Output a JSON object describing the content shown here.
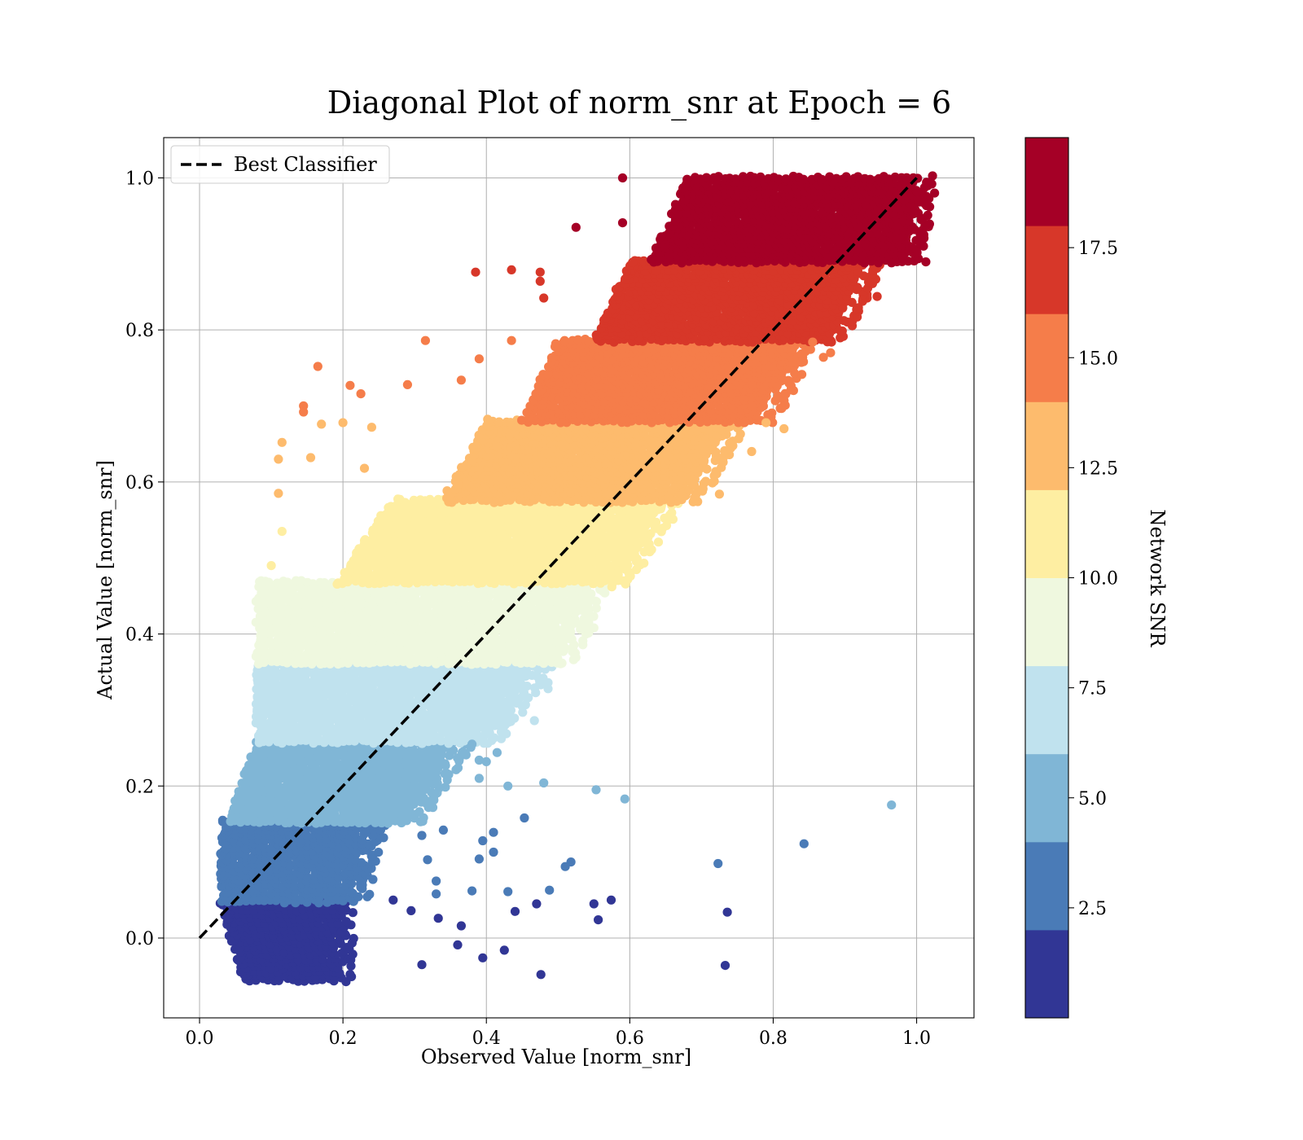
{
  "chart_data": {
    "type": "scatter",
    "title": "Diagonal Plot of norm_snr at Epoch = 6",
    "xlabel": "Observed Value [norm_snr]",
    "ylabel": "Actual Value [norm_snr]",
    "xlim": [
      -0.05,
      1.08
    ],
    "ylim": [
      -0.105,
      1.053
    ],
    "xticks": [
      0.0,
      0.2,
      0.4,
      0.6,
      0.8,
      1.0
    ],
    "xtick_labels": [
      "0.0",
      "0.2",
      "0.4",
      "0.6",
      "0.8",
      "1.0"
    ],
    "yticks": [
      0.0,
      0.2,
      0.4,
      0.6,
      0.8,
      1.0
    ],
    "ytick_labels": [
      "0.0",
      "0.2",
      "0.4",
      "0.6",
      "0.8",
      "1.0"
    ],
    "grid": true,
    "legend": {
      "placement": "upper-left",
      "entries": [
        "Best Classifier"
      ]
    },
    "reference_line": {
      "name": "Best Classifier",
      "style": "dashed",
      "color": "#000000",
      "x": [
        0.0,
        1.0
      ],
      "y": [
        0.0,
        1.0
      ]
    },
    "colorbar": {
      "label": "Network SNR",
      "range": [
        0,
        20
      ],
      "ticks": [
        2.5,
        5.0,
        7.5,
        10.0,
        12.5,
        15.0,
        17.5
      ],
      "tick_labels": [
        "2.5",
        "5.0",
        "7.5",
        "10.0",
        "12.5",
        "15.0",
        "17.5"
      ],
      "bin_edges": [
        0,
        2,
        4,
        6,
        8,
        10,
        12,
        14,
        16,
        18,
        20
      ],
      "colors": [
        "#313695",
        "#4a7bb7",
        "#80b6d6",
        "#c0e2ee",
        "#eff8df",
        "#feeea2",
        "#fdbb6d",
        "#f57d4a",
        "#d73729",
        "#a50026"
      ]
    },
    "bands": [
      {
        "snr_bin": "0-2",
        "y_min": -0.055,
        "y_max": 0.048,
        "x_min_at_bottom": 0.07,
        "x_max_at_bottom": 0.19,
        "x_min_at_top": 0.04,
        "x_max_at_top": 0.19
      },
      {
        "snr_bin": "2-4",
        "y_min": 0.048,
        "y_max": 0.153,
        "x_min_at_bottom": 0.04,
        "x_max_at_bottom": 0.21,
        "x_min_at_top": 0.04,
        "x_max_at_top": 0.24
      },
      {
        "snr_bin": "4-6",
        "y_min": 0.153,
        "y_max": 0.258,
        "x_min_at_bottom": 0.05,
        "x_max_at_bottom": 0.29,
        "x_min_at_top": 0.09,
        "x_max_at_top": 0.36
      },
      {
        "snr_bin": "6-8",
        "y_min": 0.258,
        "y_max": 0.362,
        "x_min_at_bottom": 0.09,
        "x_max_at_bottom": 0.4,
        "x_min_at_top": 0.09,
        "x_max_at_top": 0.47
      },
      {
        "snr_bin": "8-10",
        "y_min": 0.362,
        "y_max": 0.468,
        "x_min_at_bottom": 0.09,
        "x_max_at_bottom": 0.5,
        "x_min_at_top": 0.09,
        "x_max_at_top": 0.55
      },
      {
        "snr_bin": "10-12",
        "y_min": 0.468,
        "y_max": 0.575,
        "x_min_at_bottom": 0.2,
        "x_max_at_bottom": 0.58,
        "x_min_at_top": 0.28,
        "x_max_at_top": 0.65
      },
      {
        "snr_bin": "12-14",
        "y_min": 0.575,
        "y_max": 0.68,
        "x_min_at_bottom": 0.35,
        "x_max_at_bottom": 0.68,
        "x_min_at_top": 0.41,
        "x_max_at_top": 0.74
      },
      {
        "snr_bin": "14-16",
        "y_min": 0.68,
        "y_max": 0.786,
        "x_min_at_bottom": 0.46,
        "x_max_at_bottom": 0.78,
        "x_min_at_top": 0.51,
        "x_max_at_top": 0.84
      },
      {
        "snr_bin": "16-18",
        "y_min": 0.786,
        "y_max": 0.89,
        "x_min_at_bottom": 0.56,
        "x_max_at_bottom": 0.88,
        "x_min_at_top": 0.61,
        "x_max_at_top": 0.93
      },
      {
        "snr_bin": "18-20",
        "y_min": 0.89,
        "y_max": 1.0,
        "x_min_at_bottom": 0.64,
        "x_max_at_bottom": 0.99,
        "x_min_at_top": 0.69,
        "x_max_at_top": 1.0
      }
    ],
    "outliers": [
      {
        "x": 0.31,
        "y": -0.035,
        "bin": 0
      },
      {
        "x": 0.36,
        "y": -0.009,
        "bin": 0
      },
      {
        "x": 0.395,
        "y": -0.026,
        "bin": 0
      },
      {
        "x": 0.425,
        "y": -0.016,
        "bin": 0
      },
      {
        "x": 0.476,
        "y": -0.048,
        "bin": 0
      },
      {
        "x": 0.733,
        "y": -0.036,
        "bin": 0
      },
      {
        "x": 0.736,
        "y": 0.034,
        "bin": 0
      },
      {
        "x": 0.574,
        "y": 0.05,
        "bin": 0
      },
      {
        "x": 0.556,
        "y": 0.024,
        "bin": 0
      },
      {
        "x": 0.55,
        "y": 0.045,
        "bin": 0
      },
      {
        "x": 0.47,
        "y": 0.045,
        "bin": 0
      },
      {
        "x": 0.44,
        "y": 0.035,
        "bin": 0
      },
      {
        "x": 0.365,
        "y": 0.016,
        "bin": 0
      },
      {
        "x": 0.333,
        "y": 0.026,
        "bin": 0
      },
      {
        "x": 0.295,
        "y": 0.036,
        "bin": 0
      },
      {
        "x": 0.27,
        "y": 0.05,
        "bin": 0
      },
      {
        "x": 0.843,
        "y": 0.124,
        "bin": 1
      },
      {
        "x": 0.723,
        "y": 0.098,
        "bin": 1
      },
      {
        "x": 0.518,
        "y": 0.1,
        "bin": 1
      },
      {
        "x": 0.51,
        "y": 0.094,
        "bin": 1
      },
      {
        "x": 0.488,
        "y": 0.063,
        "bin": 1
      },
      {
        "x": 0.43,
        "y": 0.061,
        "bin": 1
      },
      {
        "x": 0.41,
        "y": 0.113,
        "bin": 1
      },
      {
        "x": 0.41,
        "y": 0.139,
        "bin": 1
      },
      {
        "x": 0.395,
        "y": 0.128,
        "bin": 1
      },
      {
        "x": 0.39,
        "y": 0.104,
        "bin": 1
      },
      {
        "x": 0.38,
        "y": 0.062,
        "bin": 1
      },
      {
        "x": 0.34,
        "y": 0.142,
        "bin": 1
      },
      {
        "x": 0.318,
        "y": 0.103,
        "bin": 1
      },
      {
        "x": 0.33,
        "y": 0.075,
        "bin": 1
      },
      {
        "x": 0.31,
        "y": 0.135,
        "bin": 1
      },
      {
        "x": 0.453,
        "y": 0.158,
        "bin": 1
      },
      {
        "x": 0.33,
        "y": 0.058,
        "bin": 1
      },
      {
        "x": 0.965,
        "y": 0.175,
        "bin": 2
      },
      {
        "x": 0.593,
        "y": 0.183,
        "bin": 2
      },
      {
        "x": 0.553,
        "y": 0.195,
        "bin": 2
      },
      {
        "x": 0.48,
        "y": 0.204,
        "bin": 2
      },
      {
        "x": 0.43,
        "y": 0.2,
        "bin": 2
      },
      {
        "x": 0.415,
        "y": 0.244,
        "bin": 2
      },
      {
        "x": 0.39,
        "y": 0.21,
        "bin": 2
      },
      {
        "x": 0.39,
        "y": 0.234,
        "bin": 2
      },
      {
        "x": 0.4,
        "y": 0.232,
        "bin": 2
      },
      {
        "x": 0.38,
        "y": 0.255,
        "bin": 2
      },
      {
        "x": 0.486,
        "y": 0.336,
        "bin": 3
      },
      {
        "x": 0.486,
        "y": 0.328,
        "bin": 3
      },
      {
        "x": 0.467,
        "y": 0.286,
        "bin": 3
      },
      {
        "x": 0.45,
        "y": 0.305,
        "bin": 3
      },
      {
        "x": 0.43,
        "y": 0.295,
        "bin": 3
      },
      {
        "x": 0.41,
        "y": 0.285,
        "bin": 3
      },
      {
        "x": 0.55,
        "y": 0.408,
        "bin": 4
      },
      {
        "x": 0.52,
        "y": 0.382,
        "bin": 4
      },
      {
        "x": 0.59,
        "y": 0.47,
        "bin": 5
      },
      {
        "x": 0.575,
        "y": 0.462,
        "bin": 5
      },
      {
        "x": 0.62,
        "y": 0.508,
        "bin": 5
      },
      {
        "x": 0.1,
        "y": 0.49,
        "bin": 5
      },
      {
        "x": 0.115,
        "y": 0.535,
        "bin": 5
      },
      {
        "x": 0.725,
        "y": 0.584,
        "bin": 6
      },
      {
        "x": 0.69,
        "y": 0.596,
        "bin": 6
      },
      {
        "x": 0.11,
        "y": 0.585,
        "bin": 6
      },
      {
        "x": 0.11,
        "y": 0.63,
        "bin": 6
      },
      {
        "x": 0.115,
        "y": 0.652,
        "bin": 6
      },
      {
        "x": 0.155,
        "y": 0.632,
        "bin": 6
      },
      {
        "x": 0.17,
        "y": 0.676,
        "bin": 6
      },
      {
        "x": 0.2,
        "y": 0.678,
        "bin": 6
      },
      {
        "x": 0.24,
        "y": 0.672,
        "bin": 6
      },
      {
        "x": 0.23,
        "y": 0.618,
        "bin": 6
      },
      {
        "x": 0.815,
        "y": 0.67,
        "bin": 6
      },
      {
        "x": 0.79,
        "y": 0.678,
        "bin": 6
      },
      {
        "x": 0.77,
        "y": 0.64,
        "bin": 6
      },
      {
        "x": 0.145,
        "y": 0.7,
        "bin": 7
      },
      {
        "x": 0.145,
        "y": 0.692,
        "bin": 7
      },
      {
        "x": 0.165,
        "y": 0.752,
        "bin": 7
      },
      {
        "x": 0.21,
        "y": 0.727,
        "bin": 7
      },
      {
        "x": 0.225,
        "y": 0.716,
        "bin": 7
      },
      {
        "x": 0.29,
        "y": 0.728,
        "bin": 7
      },
      {
        "x": 0.315,
        "y": 0.786,
        "bin": 7
      },
      {
        "x": 0.365,
        "y": 0.734,
        "bin": 7
      },
      {
        "x": 0.39,
        "y": 0.762,
        "bin": 7
      },
      {
        "x": 0.435,
        "y": 0.786,
        "bin": 7
      },
      {
        "x": 0.88,
        "y": 0.77,
        "bin": 7
      },
      {
        "x": 0.87,
        "y": 0.764,
        "bin": 7
      },
      {
        "x": 0.855,
        "y": 0.784,
        "bin": 7
      },
      {
        "x": 0.77,
        "y": 0.7,
        "bin": 7
      },
      {
        "x": 0.385,
        "y": 0.876,
        "bin": 8
      },
      {
        "x": 0.435,
        "y": 0.879,
        "bin": 8
      },
      {
        "x": 0.475,
        "y": 0.876,
        "bin": 8
      },
      {
        "x": 0.475,
        "y": 0.864,
        "bin": 8
      },
      {
        "x": 0.48,
        "y": 0.842,
        "bin": 8
      },
      {
        "x": 0.945,
        "y": 0.844,
        "bin": 8
      },
      {
        "x": 0.525,
        "y": 0.935,
        "bin": 9
      },
      {
        "x": 0.59,
        "y": 0.941,
        "bin": 9
      },
      {
        "x": 0.59,
        "y": 1.0,
        "bin": 9
      },
      {
        "x": 1.025,
        "y": 0.98,
        "bin": 9
      },
      {
        "x": 1.01,
        "y": 0.968,
        "bin": 9
      }
    ]
  }
}
